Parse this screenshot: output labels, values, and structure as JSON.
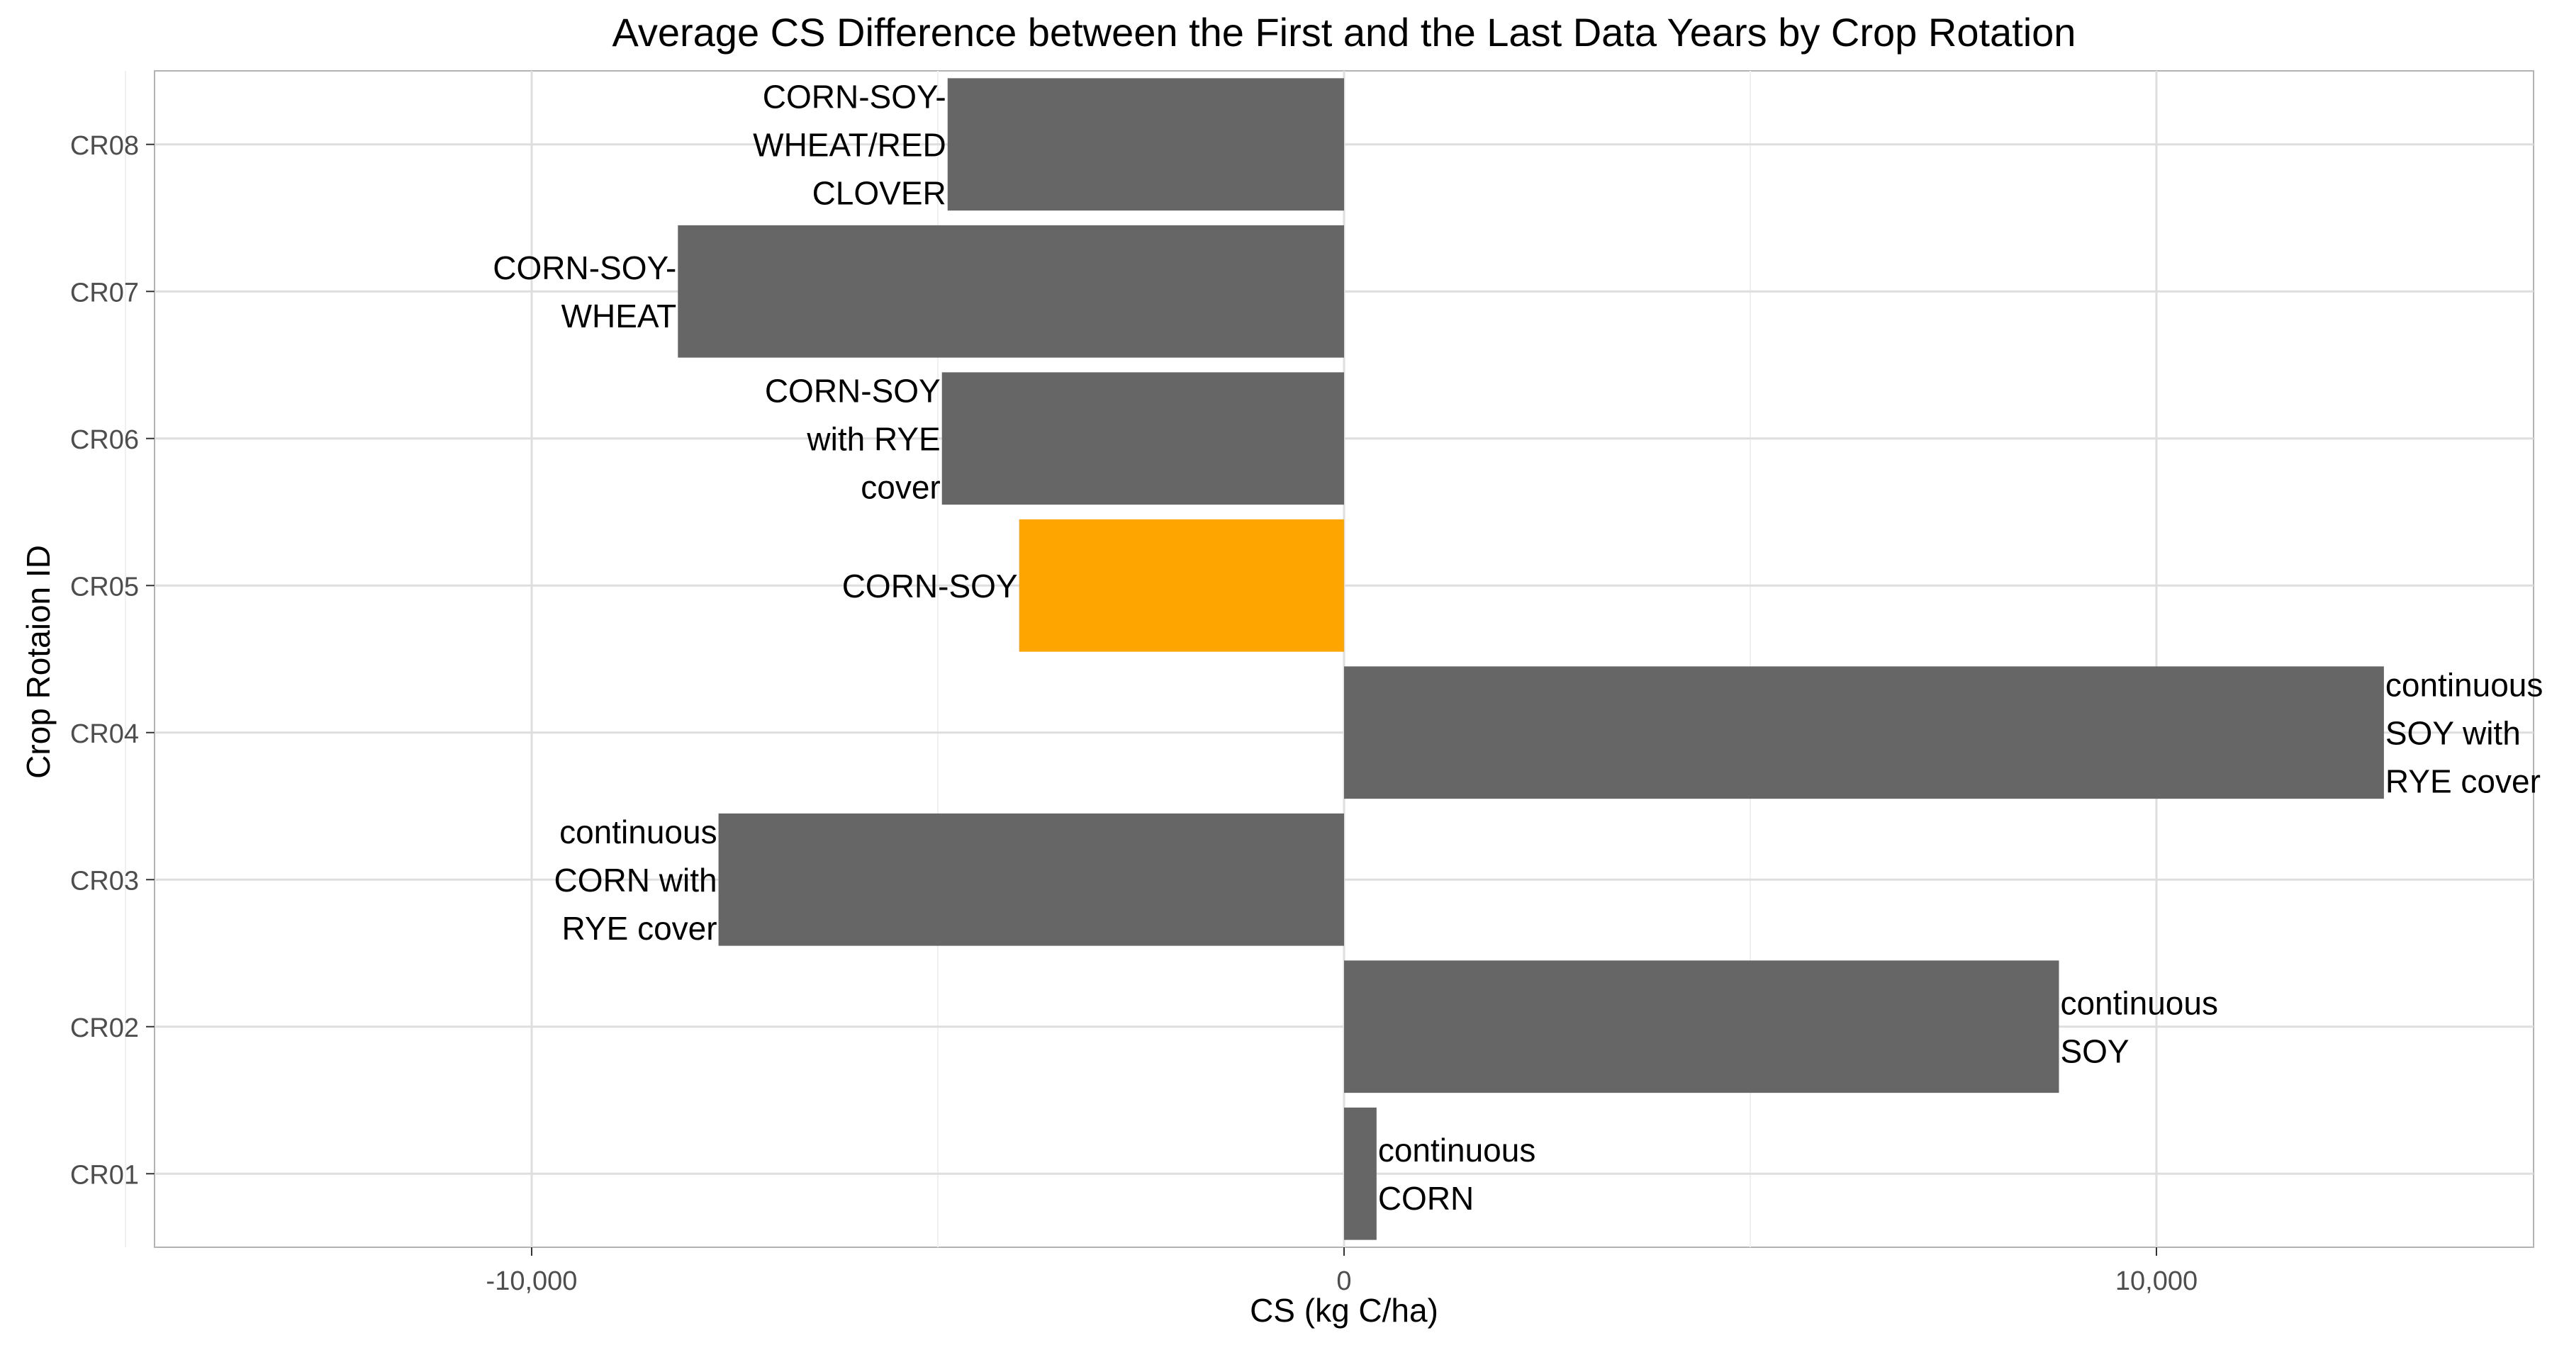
{
  "chart_data": {
    "type": "bar",
    "orientation": "horizontal",
    "title": "Average CS Difference between the First and the Last Data Years by Crop Rotation",
    "xlabel": "CS (kg C/ha)",
    "ylabel": "Crop Rotaion ID",
    "xlim": [
      -16500,
      16500
    ],
    "x_ticks": [
      -10000,
      0,
      10000
    ],
    "x_tick_labels": [
      "-10,000",
      "0",
      "10,000"
    ],
    "grid": true,
    "highlight_color": "#FFA500",
    "bar_color": "#666666",
    "categories": [
      "CR01",
      "CR02",
      "CR03",
      "CR04",
      "CR05",
      "CR06",
      "CR07",
      "CR08"
    ],
    "values": [
      400,
      8800,
      -7700,
      12800,
      -4000,
      -4950,
      -8200,
      -4880
    ],
    "bar_labels": [
      [
        "continuous",
        "CORN"
      ],
      [
        "continuous",
        "SOY"
      ],
      [
        "continuous",
        "CORN with",
        "RYE cover"
      ],
      [
        "continuous",
        "SOY with",
        "RYE cover"
      ],
      [
        "CORN-SOY"
      ],
      [
        "CORN-SOY",
        "with RYE",
        "cover"
      ],
      [
        "CORN-SOY-",
        "WHEAT"
      ],
      [
        "CORN-SOY-",
        "WHEAT/RED",
        "CLOVER"
      ]
    ],
    "highlighted": [
      "CR05"
    ]
  }
}
